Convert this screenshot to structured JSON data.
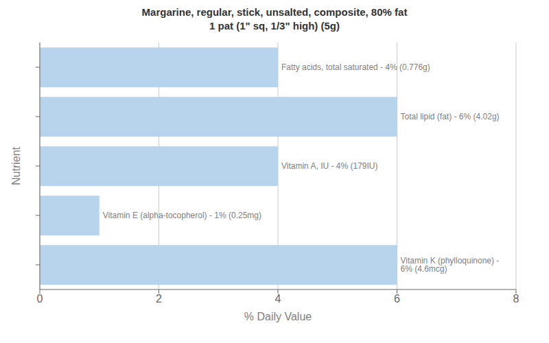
{
  "chart_data": {
    "type": "bar",
    "orientation": "horizontal",
    "title": "Margarine, regular, stick, unsalted, composite, 80% fat\n1 pat (1\" sq, 1/3\" high) (5g)",
    "xlabel": "% Daily Value",
    "ylabel": "Nutrient",
    "categories": [
      null,
      null,
      null,
      null,
      null
    ],
    "values": [
      4,
      6,
      4,
      1,
      6
    ],
    "value_labels": [
      "Fatty acids, total saturated - 4% (0.776g)",
      "Total lipid (fat) - 6% (4.02g)",
      "Vitamin A, IU - 4% (179IU)",
      "Vitamin E (alpha-tocopherol) - 1% (0.25mg)",
      "Vitamin K (phylloquinone) - 6% (4.6mcg)"
    ],
    "data_labels": true,
    "color": "#b8d4ed",
    "xlim": [
      0,
      8
    ],
    "xticks": [
      0,
      2,
      4,
      6,
      8
    ],
    "grid": true
  }
}
